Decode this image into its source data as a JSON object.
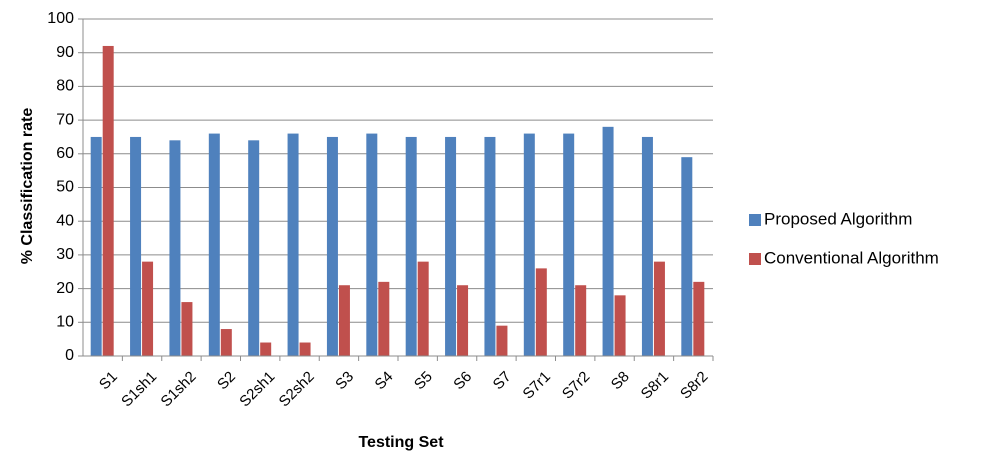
{
  "chart_data": {
    "type": "bar",
    "title": "",
    "xlabel": "Testing Set",
    "ylabel": "% Classification rate",
    "ylim": [
      0,
      100
    ],
    "y_ticks": [
      0,
      10,
      20,
      30,
      40,
      50,
      60,
      70,
      80,
      90,
      100
    ],
    "grid": true,
    "legend_position": "right",
    "categories": [
      "S1",
      "S1sh1",
      "S1sh2",
      "S2",
      "S2sh1",
      "S2sh2",
      "S3",
      "S4",
      "S5",
      "S6",
      "S7",
      "S7r1",
      "S7r2",
      "S8",
      "S8r1",
      "S8r2"
    ],
    "series": [
      {
        "name": "Proposed Algorithm",
        "color": "#4F81BD",
        "values": [
          65,
          65,
          64,
          66,
          64,
          66,
          65,
          66,
          65,
          65,
          65,
          66,
          66,
          68,
          65,
          59
        ]
      },
      {
        "name": "Conventional Algorithm",
        "color": "#C0504D",
        "values": [
          92,
          28,
          16,
          8,
          4,
          4,
          21,
          22,
          28,
          21,
          9,
          26,
          21,
          18,
          28,
          22
        ]
      }
    ]
  }
}
